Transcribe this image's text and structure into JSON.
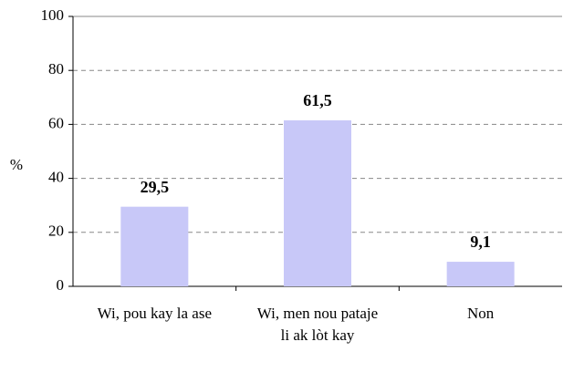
{
  "chart_data": {
    "type": "bar",
    "y_label": "%",
    "categories": [
      "Wi, pou kay la ase",
      "Wi, men nou pataje li ak lòt kay",
      "Non"
    ],
    "values": [
      29.5,
      61.5,
      9.1
    ],
    "value_labels": [
      "29,5",
      "61,5",
      "9,1"
    ],
    "color": "#c8c8f8",
    "ylim": [
      0,
      100
    ],
    "yticks": [
      0,
      20,
      40,
      60,
      80,
      100
    ],
    "grid": true
  }
}
